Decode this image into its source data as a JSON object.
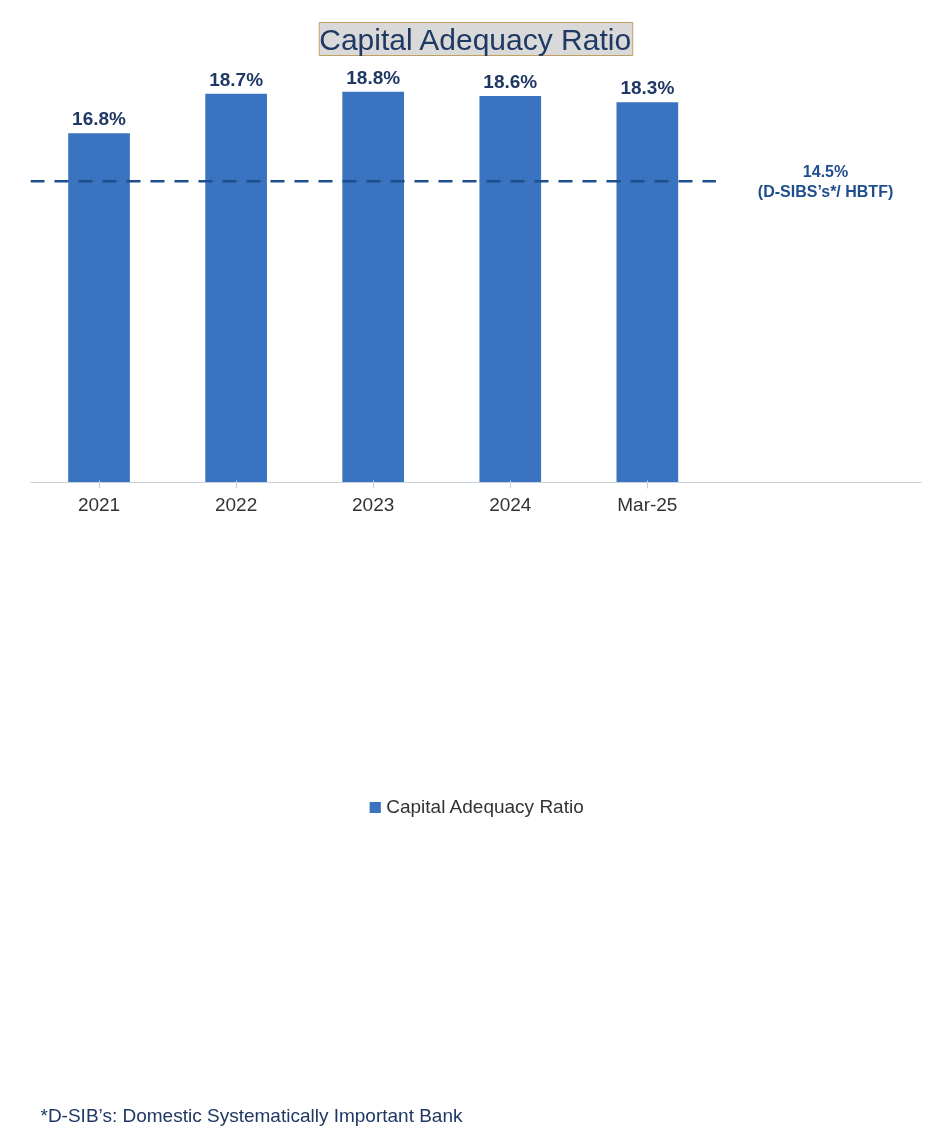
{
  "chart_data": {
    "type": "bar",
    "title": "Capital Adequacy Ratio",
    "categories": [
      "2021",
      "2022",
      "2023",
      "2024",
      "Mar-25"
    ],
    "series": [
      {
        "name": "Capital Adequacy Ratio",
        "color": "#3a73c0",
        "values": [
          16.8,
          18.7,
          18.8,
          18.6,
          18.3
        ],
        "value_labels": [
          "16.8%",
          "18.7%",
          "18.8%",
          "18.6%",
          "18.3%"
        ]
      }
    ],
    "tick_labels": "x",
    "grid": false,
    "legend": "bottom",
    "ref_lines": [
      {
        "axis": "y",
        "value": 14.5,
        "label": "14.5%\n(D-SIBS’s*/ HBTF)",
        "color": "#1f4e8c",
        "line_style": "dashed"
      }
    ],
    "annotations": [
      "*D-SIB’s: Domestic Systematically Important Bank"
    ]
  }
}
